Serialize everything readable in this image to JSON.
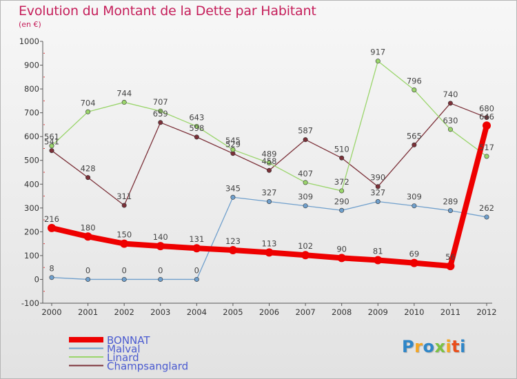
{
  "header": {
    "title": "Evolution du Montant de la Dette par Habitant",
    "unit": "(en €)"
  },
  "logo": {
    "letters": [
      "P",
      "r",
      "o",
      "x",
      "i",
      "t",
      "i"
    ],
    "colors": [
      "#2e86c8",
      "#f5a623",
      "#2e86c8",
      "#7cc242",
      "#f5a623",
      "#e94e1b",
      "#2e86c8"
    ]
  },
  "chart_data": {
    "type": "line",
    "title": "Evolution du Montant de la Dette par Habitant",
    "ylabel": "(en €)",
    "x": [
      "2000",
      "2001",
      "2002",
      "2003",
      "2004",
      "2005",
      "2006",
      "2007",
      "2008",
      "2009",
      "2010",
      "2011",
      "2012"
    ],
    "ylim": [
      -100,
      1000
    ],
    "yticks": [
      -100,
      0,
      100,
      200,
      300,
      400,
      500,
      600,
      700,
      800,
      900,
      1000
    ],
    "grid": false,
    "legend_position": "bottom-left",
    "series": [
      {
        "name": "BONNAT",
        "color": "#ee0000",
        "values": [
          216,
          180,
          150,
          140,
          131,
          123,
          113,
          102,
          90,
          81,
          69,
          56,
          646
        ]
      },
      {
        "name": "Malval",
        "color": "#6f9fcc",
        "values": [
          8,
          0,
          0,
          0,
          0,
          345,
          327,
          309,
          290,
          327,
          309,
          289,
          262
        ]
      },
      {
        "name": "Linard",
        "color": "#9ad56b",
        "values": [
          561,
          704,
          744,
          707,
          643,
          545,
          489,
          407,
          372,
          917,
          796,
          630,
          517
        ]
      },
      {
        "name": "Champsanglard",
        "color": "#7b3038",
        "values": [
          541,
          428,
          311,
          659,
          598,
          529,
          458,
          587,
          510,
          390,
          565,
          740,
          680
        ]
      }
    ]
  }
}
